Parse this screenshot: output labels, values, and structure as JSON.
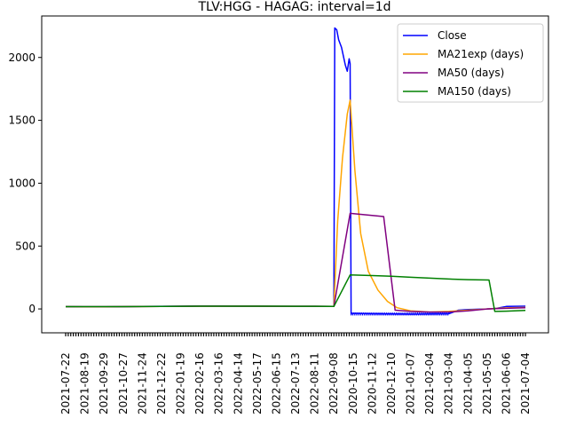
{
  "chart_data": {
    "type": "line",
    "title": "TLV:HGG - HAGAG: interval=1d",
    "xlabel": "",
    "ylabel": "",
    "ylim": [
      -190,
      2330
    ],
    "yticks": [
      0,
      500,
      1000,
      1500,
      2000
    ],
    "xticks": [
      "2021-07-22",
      "2021-08-19",
      "2021-09-29",
      "2021-10-27",
      "2021-11-24",
      "2021-12-22",
      "2022-01-19",
      "2022-02-16",
      "2022-03-16",
      "2022-04-14",
      "2022-05-17",
      "2022-06-15",
      "2022-07-13",
      "2022-08-11",
      "2022-09-08",
      "2020-10-15",
      "2020-11-12",
      "2020-12-10",
      "2021-01-07",
      "2021-02-04",
      "2021-03-04",
      "2021-04-05",
      "2021-05-05",
      "2021-06-06",
      "2021-07-04"
    ],
    "legend_position": "top-right",
    "grid": false,
    "series": [
      {
        "name": "Close",
        "color": "#0000ff",
        "points": [
          [
            0,
            18
          ],
          [
            1,
            16
          ],
          [
            2,
            17
          ],
          [
            3,
            18
          ],
          [
            4,
            20
          ],
          [
            5,
            21
          ],
          [
            6,
            22
          ],
          [
            7,
            23
          ],
          [
            8,
            23
          ],
          [
            9,
            22
          ],
          [
            10,
            22
          ],
          [
            11,
            21
          ],
          [
            12,
            21
          ],
          [
            13,
            21
          ],
          [
            14,
            20
          ],
          [
            14.05,
            2235
          ],
          [
            14.15,
            2220
          ],
          [
            14.25,
            2140
          ],
          [
            14.4,
            2080
          ],
          [
            14.6,
            1940
          ],
          [
            14.7,
            1890
          ],
          [
            14.8,
            1990
          ],
          [
            14.85,
            1950
          ],
          [
            14.9,
            -40
          ],
          [
            15,
            -35
          ],
          [
            16,
            -38
          ],
          [
            17,
            -40
          ],
          [
            18,
            -42
          ],
          [
            19,
            -40
          ],
          [
            20,
            -38
          ],
          [
            20.5,
            -10
          ],
          [
            21,
            -5
          ],
          [
            22,
            0
          ],
          [
            22.5,
            5
          ],
          [
            23,
            20
          ],
          [
            24,
            22
          ]
        ]
      },
      {
        "name": "MA21exp (days)",
        "color": "#ffa500",
        "points": [
          [
            0,
            18
          ],
          [
            1,
            17
          ],
          [
            2,
            17
          ],
          [
            3,
            18
          ],
          [
            4,
            19
          ],
          [
            5,
            20
          ],
          [
            6,
            21
          ],
          [
            7,
            22
          ],
          [
            8,
            22
          ],
          [
            9,
            22
          ],
          [
            10,
            22
          ],
          [
            11,
            21
          ],
          [
            12,
            21
          ],
          [
            13,
            21
          ],
          [
            14,
            20
          ],
          [
            14.2,
            700
          ],
          [
            14.45,
            1200
          ],
          [
            14.7,
            1550
          ],
          [
            14.85,
            1660
          ],
          [
            15.1,
            1100
          ],
          [
            15.4,
            600
          ],
          [
            15.8,
            300
          ],
          [
            16.3,
            150
          ],
          [
            16.8,
            60
          ],
          [
            17.3,
            10
          ],
          [
            18,
            -15
          ],
          [
            19,
            -25
          ],
          [
            20,
            -20
          ],
          [
            21,
            -10
          ],
          [
            22,
            0
          ],
          [
            23,
            8
          ],
          [
            24,
            12
          ]
        ]
      },
      {
        "name": "MA50 (days)",
        "color": "#800080",
        "points": [
          [
            0,
            18
          ],
          [
            1,
            18
          ],
          [
            2,
            18
          ],
          [
            3,
            18
          ],
          [
            4,
            19
          ],
          [
            5,
            20
          ],
          [
            6,
            21
          ],
          [
            7,
            22
          ],
          [
            8,
            22
          ],
          [
            9,
            22
          ],
          [
            10,
            22
          ],
          [
            11,
            21
          ],
          [
            12,
            21
          ],
          [
            13,
            21
          ],
          [
            14,
            20
          ],
          [
            14.85,
            760
          ],
          [
            16.6,
            735
          ],
          [
            17.2,
            -10
          ],
          [
            18,
            -20
          ],
          [
            19,
            -25
          ],
          [
            20,
            -25
          ],
          [
            21,
            -15
          ],
          [
            22,
            0
          ],
          [
            23,
            5
          ],
          [
            24,
            10
          ]
        ]
      },
      {
        "name": "MA150 (days)",
        "color": "#008000",
        "points": [
          [
            0,
            18
          ],
          [
            1,
            18
          ],
          [
            2,
            18
          ],
          [
            3,
            18
          ],
          [
            4,
            19
          ],
          [
            5,
            20
          ],
          [
            6,
            21
          ],
          [
            7,
            22
          ],
          [
            8,
            22
          ],
          [
            9,
            22
          ],
          [
            10,
            22
          ],
          [
            11,
            22
          ],
          [
            12,
            21
          ],
          [
            13,
            21
          ],
          [
            14,
            20
          ],
          [
            14.85,
            270
          ],
          [
            16,
            265
          ],
          [
            17,
            260
          ],
          [
            18,
            252
          ],
          [
            19,
            245
          ],
          [
            20,
            238
          ],
          [
            21,
            233
          ],
          [
            22.1,
            230
          ],
          [
            22.4,
            -20
          ],
          [
            23,
            -18
          ],
          [
            24,
            -12
          ]
        ]
      }
    ]
  }
}
